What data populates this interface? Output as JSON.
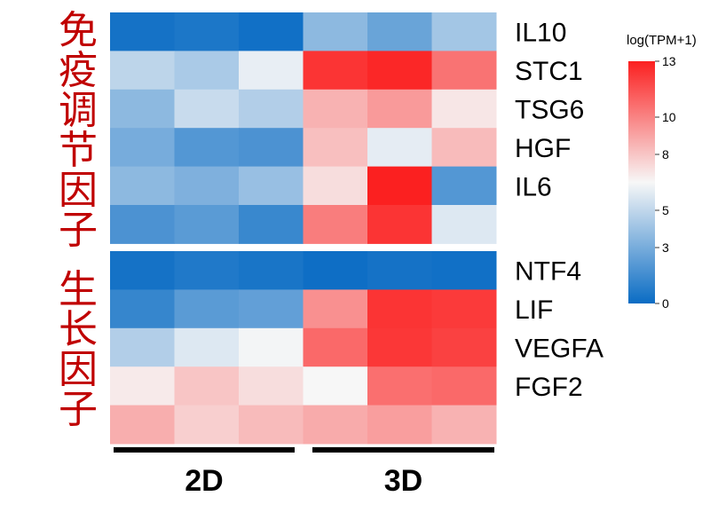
{
  "group_labels": {
    "immune": "免疫调节因子",
    "growth": "生长因子"
  },
  "chart_data": {
    "type": "heatmap",
    "columns": [
      "2D",
      "2D",
      "2D",
      "3D",
      "3D",
      "3D"
    ],
    "conditions": [
      "2D",
      "3D"
    ],
    "colorbar": {
      "title": "log(TPM+1)",
      "range": [
        0,
        13
      ],
      "ticks": [
        "0",
        "3",
        "5",
        "8",
        "10",
        "13"
      ],
      "colors": {
        "low": "#0a6cc4",
        "mid": "#f7f7f7",
        "high": "#fb2020"
      }
    },
    "row_labels": [
      "IL10",
      "STC1",
      "TSG6",
      "HGF",
      "IL6",
      "NTF4",
      "LIF",
      "VEGFA",
      "FGF2"
    ],
    "blocks": [
      {
        "name": "免疫调节因子",
        "rows": [
          {
            "gene": "IL10",
            "values": [
              0.3,
              0.5,
              0.2,
              3.6,
              2.6,
              4.2
            ]
          },
          {
            "gene": "STC1",
            "values": [
              4.9,
              4.4,
              6.1,
              12.4,
              12.8,
              10.5
            ]
          },
          {
            "gene": "TSG6",
            "values": [
              3.6,
              5.2,
              4.6,
              8.6,
              9.3,
              7.0
            ]
          },
          {
            "gene": "HGF",
            "values": [
              3.0,
              2.0,
              1.8,
              8.2,
              6.0,
              8.3
            ]
          },
          {
            "gene": "IL6",
            "values": [
              3.6,
              3.2,
              3.9,
              7.3,
              13.0,
              2.0
            ]
          },
          {
            "gene": "",
            "values": [
              1.8,
              2.2,
              1.3,
              10.2,
              12.4,
              5.8
            ]
          }
        ]
      },
      {
        "name": "生长因子",
        "rows": [
          {
            "gene": "NTF4",
            "values": [
              0.3,
              0.6,
              0.4,
              0.1,
              0.3,
              0.2
            ]
          },
          {
            "gene": "LIF",
            "values": [
              1.2,
              2.2,
              2.4,
              9.6,
              12.4,
              12.2
            ]
          },
          {
            "gene": "VEGFA",
            "values": [
              4.6,
              5.8,
              6.4,
              10.8,
              12.3,
              12.0
            ]
          },
          {
            "gene": "FGF2",
            "values": [
              6.9,
              8.0,
              7.3,
              6.5,
              10.6,
              10.8
            ]
          },
          {
            "gene": "",
            "values": [
              8.7,
              7.7,
              8.3,
              8.8,
              9.2,
              8.6
            ]
          }
        ]
      }
    ]
  }
}
